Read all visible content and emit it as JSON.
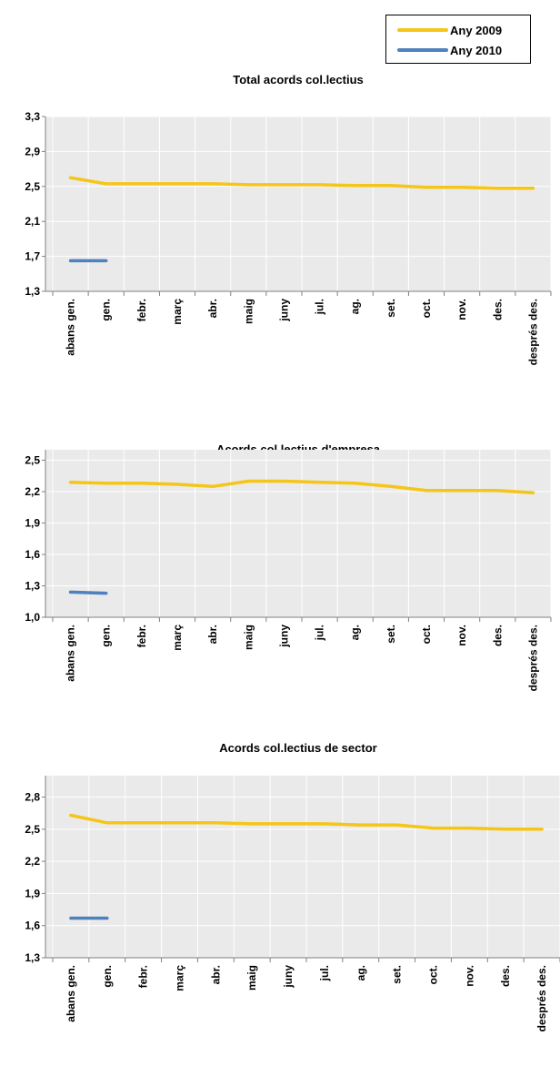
{
  "colors": {
    "series_2009": "#F5C518",
    "series_2010": "#4F81BD",
    "plot_bg": "#EAEAEA",
    "grid": "#FFFFFF",
    "axis": "#808080"
  },
  "legend": {
    "items": [
      {
        "label": "Any 2009",
        "color": "#F5C518"
      },
      {
        "label": "Any 2010",
        "color": "#4F81BD"
      }
    ]
  },
  "chart_data": [
    {
      "type": "line",
      "title": "Total acords col.lectius",
      "categories": [
        "abans gen.",
        "gen.",
        "febr.",
        "març",
        "abr.",
        "maig",
        "juny",
        "jul.",
        "ag.",
        "set.",
        "oct.",
        "nov.",
        "des.",
        "després des."
      ],
      "y_ticks": [
        "1,3",
        "1,7",
        "2,1",
        "2,5",
        "2,9",
        "3,3"
      ],
      "ylim": [
        1.3,
        3.3
      ],
      "grid": true,
      "series": [
        {
          "name": "Any 2009",
          "values": [
            2.6,
            2.53,
            2.53,
            2.53,
            2.53,
            2.52,
            2.52,
            2.52,
            2.51,
            2.51,
            2.49,
            2.49,
            2.48,
            2.48
          ]
        },
        {
          "name": "Any 2010",
          "values": [
            1.65,
            1.65,
            null,
            null,
            null,
            null,
            null,
            null,
            null,
            null,
            null,
            null,
            null,
            null
          ]
        }
      ]
    },
    {
      "type": "line",
      "title": "Acords col.lectius d'empresa",
      "categories": [
        "abans gen.",
        "gen.",
        "febr.",
        "març",
        "abr.",
        "maig",
        "juny",
        "jul.",
        "ag.",
        "set.",
        "oct.",
        "nov.",
        "des.",
        "després des."
      ],
      "y_ticks": [
        "1,0",
        "1,3",
        "1,6",
        "1,9",
        "2,2",
        "2,5"
      ],
      "ylim": [
        1.0,
        2.6
      ],
      "grid": true,
      "series": [
        {
          "name": "Any 2009",
          "values": [
            2.29,
            2.28,
            2.28,
            2.27,
            2.25,
            2.3,
            2.3,
            2.29,
            2.28,
            2.25,
            2.21,
            2.21,
            2.21,
            2.19
          ]
        },
        {
          "name": "Any 2010",
          "values": [
            1.24,
            1.23,
            null,
            null,
            null,
            null,
            null,
            null,
            null,
            null,
            null,
            null,
            null,
            null
          ]
        }
      ]
    },
    {
      "type": "line",
      "title": "Acords col.lectius de sector",
      "categories": [
        "abans gen.",
        "gen.",
        "febr.",
        "març",
        "abr.",
        "maig",
        "juny",
        "jul.",
        "ag.",
        "set.",
        "oct.",
        "nov.",
        "des.",
        "després des."
      ],
      "y_ticks": [
        "1,3",
        "1,6",
        "1,9",
        "2,2",
        "2,5",
        "2,8"
      ],
      "ylim": [
        1.3,
        3.0
      ],
      "grid": true,
      "series": [
        {
          "name": "Any 2009",
          "values": [
            2.63,
            2.56,
            2.56,
            2.56,
            2.56,
            2.55,
            2.55,
            2.55,
            2.54,
            2.54,
            2.51,
            2.51,
            2.5,
            2.5
          ]
        },
        {
          "name": "Any 2010",
          "values": [
            1.67,
            1.67,
            null,
            null,
            null,
            null,
            null,
            null,
            null,
            null,
            null,
            null,
            null,
            null
          ]
        }
      ]
    }
  ]
}
